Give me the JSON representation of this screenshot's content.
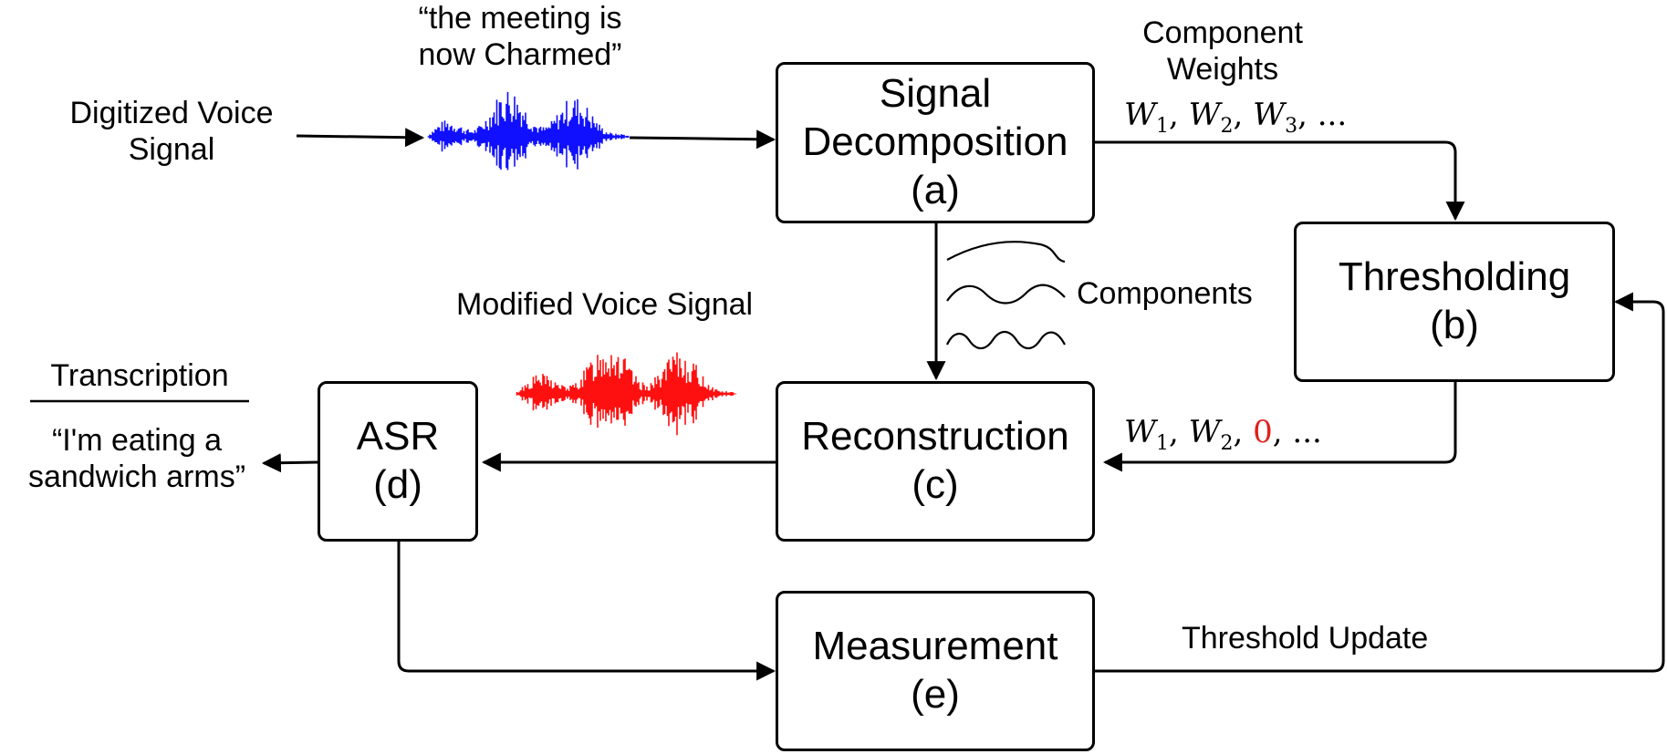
{
  "input": {
    "label_line1": "Digitized Voice",
    "label_line2": "Signal",
    "quote_line1": "“the meeting is",
    "quote_line2": "now Charmed”",
    "waveform_color": "#1010ff"
  },
  "boxes": {
    "decomposition": {
      "line1": "Signal",
      "line2": "Decomposition",
      "tag": "(a)"
    },
    "thresholding": {
      "line1": "Thresholding",
      "tag": "(b)"
    },
    "reconstruction": {
      "line1": "Reconstruction",
      "tag": "(c)"
    },
    "asr": {
      "line1": "ASR",
      "tag": "(d)"
    },
    "measurement": {
      "line1": "Measurement",
      "tag": "(e)"
    }
  },
  "weights": {
    "title_line1": "Component",
    "title_line2": "Weights",
    "w1": "W",
    "w1_sub": "1",
    "w2": "W",
    "w2_sub": "2",
    "w3": "W",
    "w3_sub": "3",
    "tail": ", ...",
    "mod_zero": "0",
    "zero_color": "#e0201a"
  },
  "components_label": "Components",
  "modified": {
    "label": "Modified Voice Signal",
    "waveform_color": "#ff1010"
  },
  "transcription": {
    "title": "Transcription",
    "quote_line1": "“I'm eating a",
    "quote_line2": "sandwich arms”"
  },
  "threshold_update": "Threshold Update"
}
